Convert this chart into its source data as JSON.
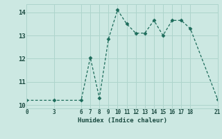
{
  "x": [
    0,
    3,
    6,
    7,
    8,
    9,
    10,
    11,
    12,
    13,
    14,
    15,
    16,
    17,
    18,
    21
  ],
  "y": [
    10.2,
    10.2,
    10.2,
    12.05,
    10.3,
    12.85,
    14.1,
    13.5,
    13.1,
    13.1,
    13.65,
    13.0,
    13.65,
    13.65,
    13.3,
    10.25
  ],
  "xlabel": "Humidex (Indice chaleur)",
  "xlim": [
    0,
    21
  ],
  "ylim": [
    9.85,
    14.35
  ],
  "xticks": [
    0,
    3,
    6,
    7,
    8,
    9,
    10,
    11,
    12,
    13,
    14,
    15,
    16,
    17,
    18,
    21
  ],
  "yticks": [
    10,
    11,
    12,
    13,
    14
  ],
  "line_color": "#1c6b5a",
  "bg_color": "#cce8e2",
  "grid_color": "#aed4cc"
}
